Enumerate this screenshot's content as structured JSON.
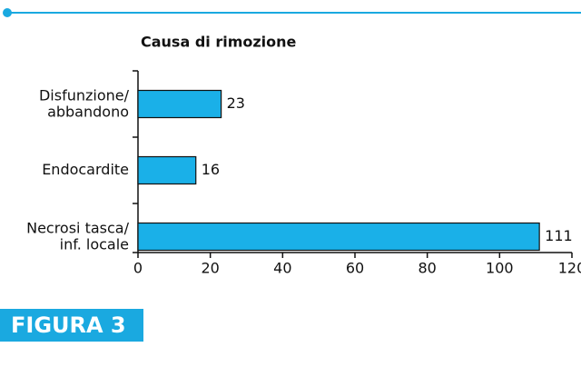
{
  "chart_data": {
    "type": "bar",
    "orientation": "horizontal",
    "title": "Causa di rimozione",
    "categories": [
      "Disfunzione/\nabbandono",
      "Endocardite",
      "Necrosi tasca/\ninf. locale"
    ],
    "values": [
      23,
      16,
      111
    ],
    "color": "#1ab0e8",
    "xlim": [
      0,
      120
    ],
    "xticks": [
      0,
      20,
      40,
      60,
      80,
      100,
      120
    ]
  },
  "figure_label": "FIGURA 3"
}
